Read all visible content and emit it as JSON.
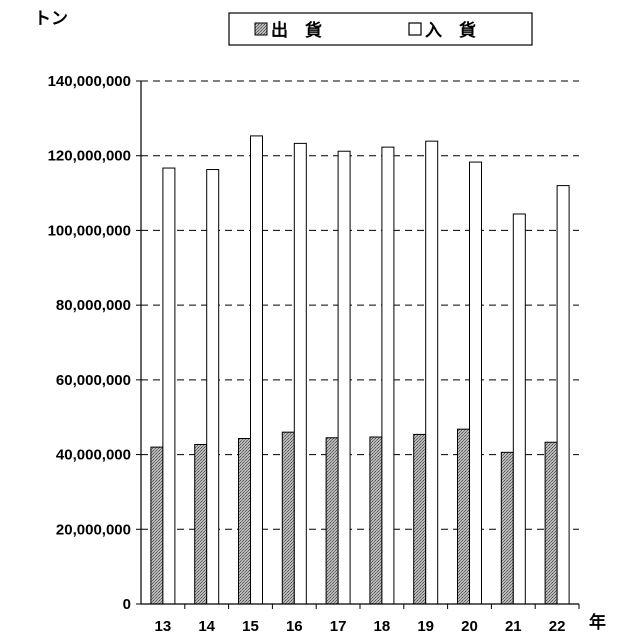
{
  "chart_data": {
    "type": "bar",
    "ylabel": "トン",
    "xlabel": "年",
    "categories": [
      "13",
      "14",
      "15",
      "16",
      "17",
      "18",
      "19",
      "20",
      "21",
      "22"
    ],
    "series": [
      {
        "name": "出　貨",
        "fill": "hatched-gray",
        "values": [
          42000000,
          42700000,
          44300000,
          46000000,
          44500000,
          44700000,
          45400000,
          46800000,
          40600000,
          43300000
        ]
      },
      {
        "name": "入　貨",
        "fill": "white",
        "values": [
          116700000,
          116300000,
          125300000,
          123300000,
          121200000,
          122300000,
          123900000,
          118300000,
          104400000,
          112000000
        ]
      }
    ],
    "ylim": [
      0,
      140000000
    ],
    "yticks": [
      "0",
      "20,000,000",
      "40,000,000",
      "60,000,000",
      "80,000,000",
      "100,000,000",
      "120,000,000",
      "140,000,000"
    ],
    "grid": "horizontal-dashed",
    "legend": "top-center"
  }
}
